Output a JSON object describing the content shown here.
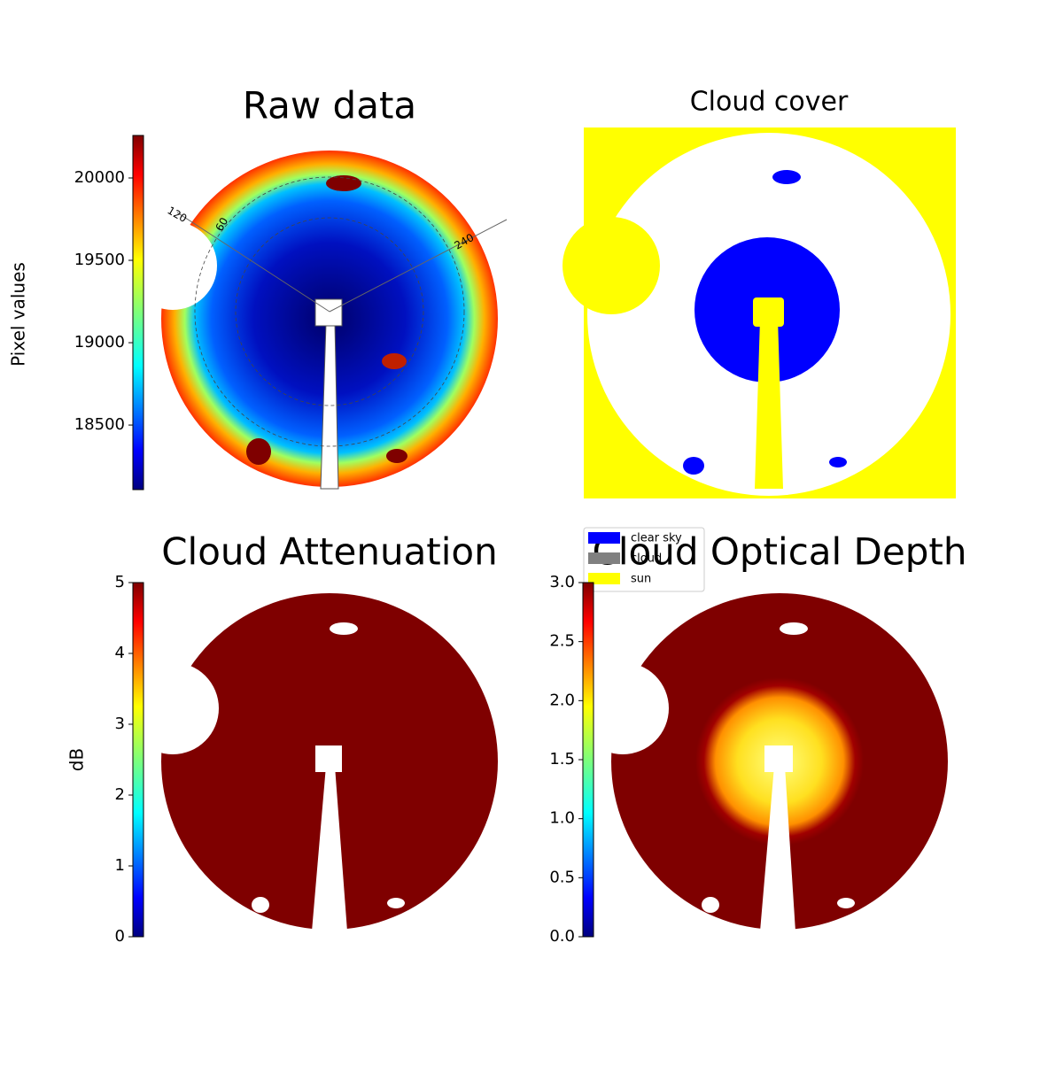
{
  "chart_data": [
    {
      "type": "image",
      "title": "Raw data",
      "ylabel": "Pixel values",
      "colormap": "jet",
      "ylim": [
        18108,
        20258
      ],
      "yticks": [
        18500,
        19000,
        19500,
        20000
      ],
      "annotations": [
        "120",
        "60",
        "240"
      ]
    },
    {
      "type": "image",
      "title": "Cloud cover",
      "series": [
        {
          "name": "clear sky",
          "color": "#0000ff"
        },
        {
          "name": "cloud",
          "color": "#808080"
        },
        {
          "name": "sun",
          "color": "#ffff00"
        }
      ]
    },
    {
      "type": "image",
      "title": "Cloud Attenuation",
      "ylabel": "dB",
      "colormap": "jet",
      "ylim": [
        0,
        5
      ],
      "yticks": [
        0,
        1,
        2,
        3,
        4,
        5
      ]
    },
    {
      "type": "image",
      "title": "Cloud Optical Depth",
      "colormap": "jet",
      "ylim": [
        0,
        3
      ],
      "yticks": [
        {
          "value": 0,
          "label": "0.0"
        },
        {
          "value": 0.5,
          "label": "0.5"
        },
        {
          "value": 1,
          "label": "1.0"
        },
        {
          "value": 1.5,
          "label": "1.5"
        },
        {
          "value": 2,
          "label": "2.0"
        },
        {
          "value": 2.5,
          "label": "2.5"
        },
        {
          "value": 3,
          "label": "3.0"
        }
      ]
    }
  ]
}
